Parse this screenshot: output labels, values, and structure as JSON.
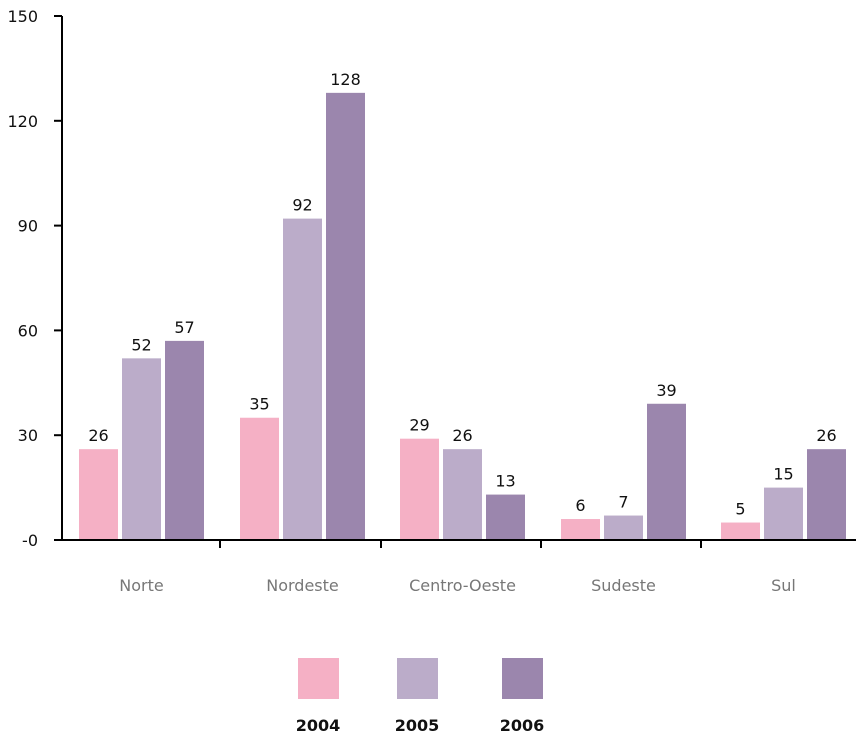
{
  "chart_data": {
    "type": "bar",
    "categories": [
      "Norte",
      "Nordeste",
      "Centro-Oeste",
      "Sudeste",
      "Sul"
    ],
    "series": [
      {
        "name": "2004",
        "values": [
          26,
          35,
          29,
          6,
          5
        ],
        "color": "#f5b0c5"
      },
      {
        "name": "2005",
        "values": [
          52,
          92,
          26,
          7,
          15
        ],
        "color": "#bbacc9"
      },
      {
        "name": "2006",
        "values": [
          57,
          128,
          13,
          39,
          26
        ],
        "color": "#9b86ad"
      }
    ],
    "ylim": [
      0,
      150
    ],
    "yticks": [
      0,
      30,
      60,
      90,
      120,
      150
    ],
    "ytick_labels": [
      "-0",
      "30",
      "60",
      "90",
      "120",
      "150"
    ],
    "legend_position": "bottom-center",
    "grid": false
  }
}
